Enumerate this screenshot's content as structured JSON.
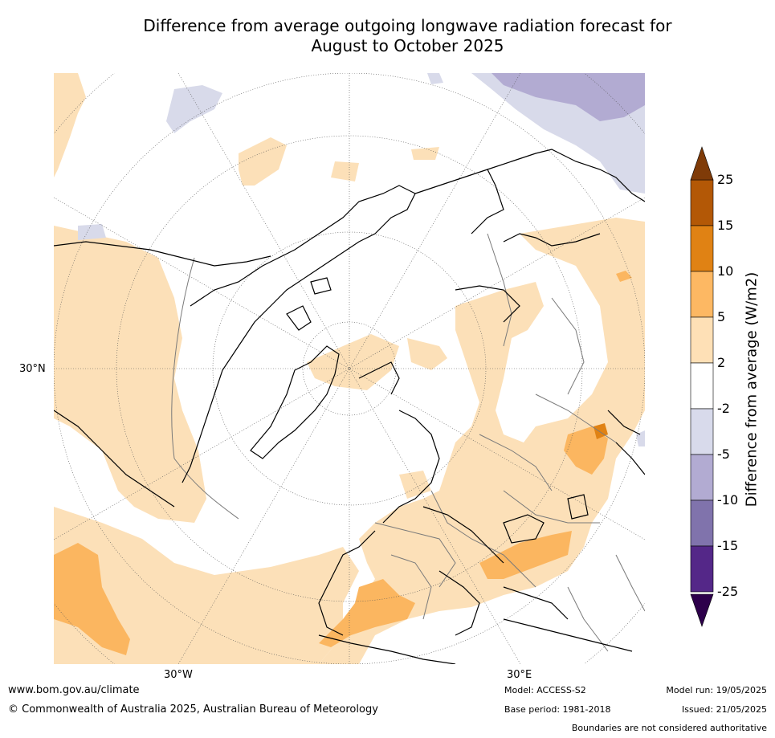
{
  "title_line1": "Difference from average outgoing longwave radiation forecast for",
  "title_line2": "August to October 2025",
  "map": {
    "projection": "north-polar-stereographic",
    "labels": {
      "lat_30n": "30°N",
      "lon_30w": "30°W",
      "lon_30e": "30°E"
    },
    "colors": {
      "ocean": "#ffffff",
      "pos_2_5": "#fce0b8",
      "pos_5_10": "#fbb660",
      "pos_10_15": "#e08214",
      "neg_2_5": "#d8daea",
      "neg_5_10": "#b2abd2",
      "coast": "#000000",
      "border": "#7a7a7a"
    }
  },
  "colorbar": {
    "title": "Difference from average (W/m2)",
    "ticks": [
      "25",
      "15",
      "10",
      "5",
      "2",
      "-2",
      "-5",
      "-10",
      "-15",
      "-25"
    ],
    "colors": [
      "#b35806",
      "#e08214",
      "#fdb863",
      "#fee0b6",
      "#ffffff",
      "#d8daeb",
      "#b2abd2",
      "#8073ac",
      "#542788"
    ],
    "top_cap": "#7f3b08",
    "bottom_cap": "#2d004b"
  },
  "footer": {
    "url": "www.bom.gov.au/climate",
    "copyright": "© Commonwealth of Australia 2025, Australian Bureau of Meteorology",
    "model": "Model: ACCESS-S2",
    "base_period": "Base period: 1981-2018",
    "model_run": "Model run: 19/05/2025",
    "issued": "Issued: 21/05/2025",
    "disclaimer": "Boundaries are not considered authoritative"
  }
}
